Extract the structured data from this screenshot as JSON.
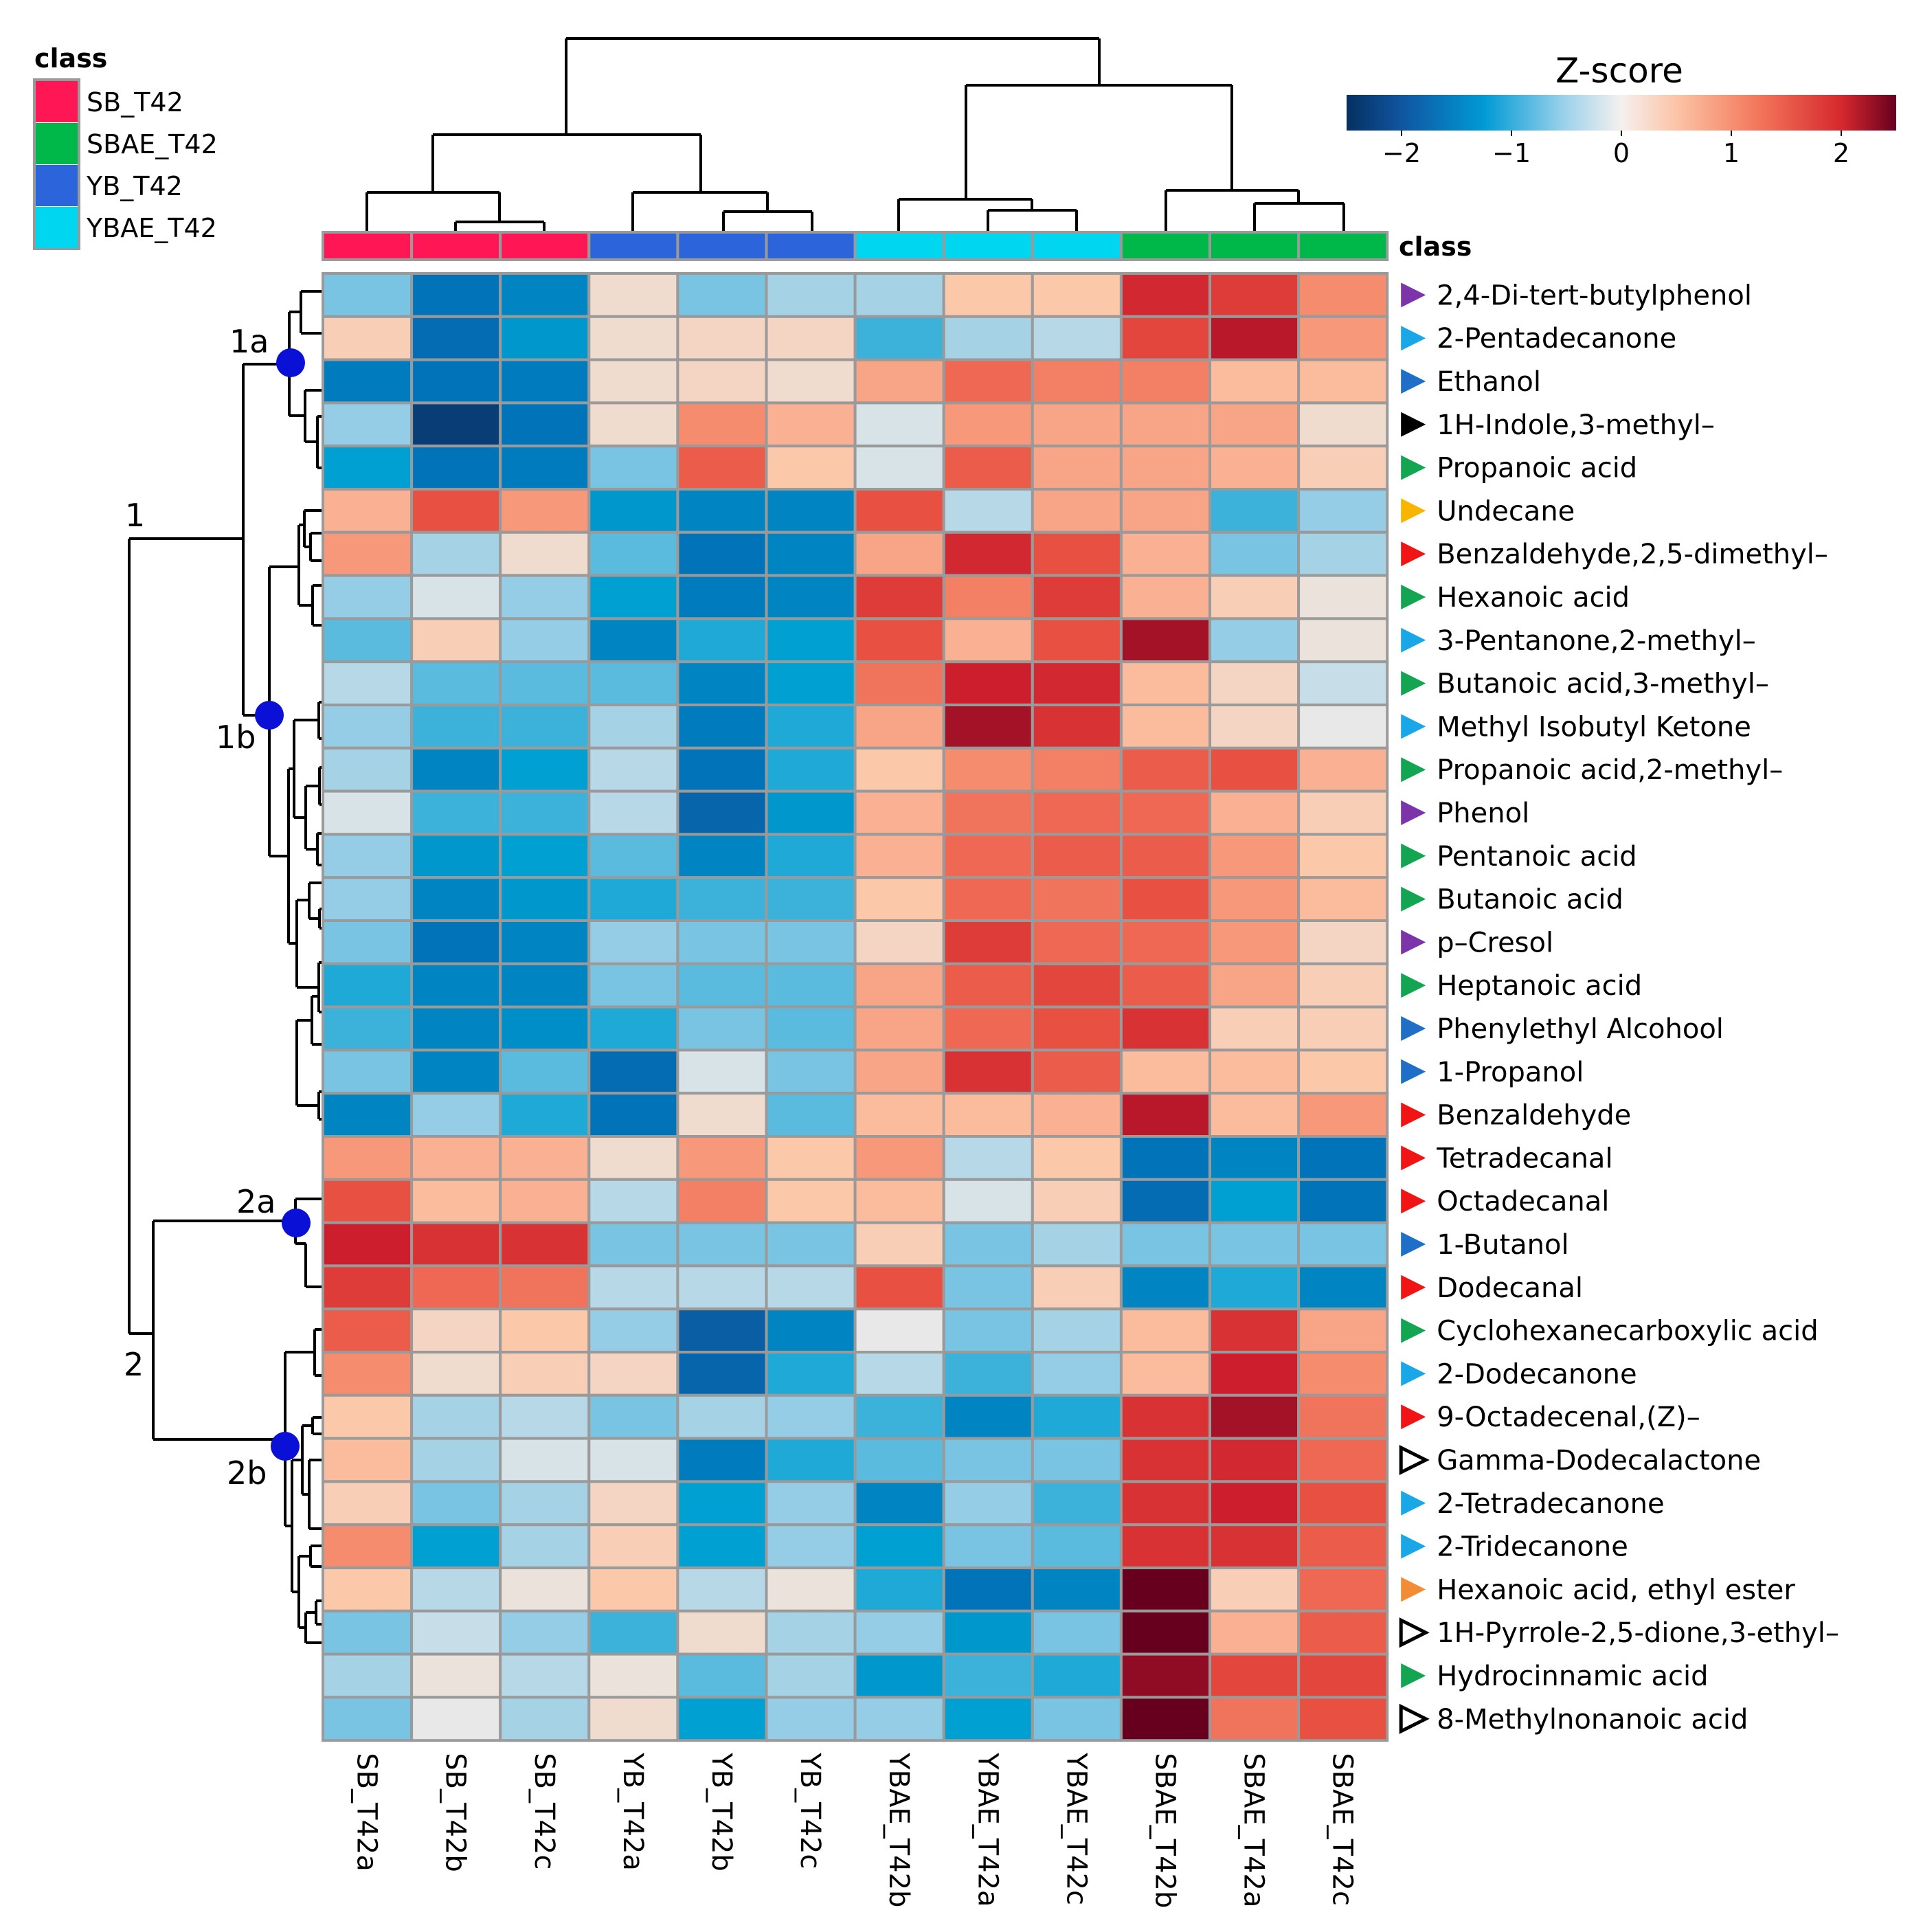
{
  "legend": {
    "title": "class",
    "items": [
      {
        "label": "SB_T42",
        "color": "#ff1654"
      },
      {
        "label": "SBAE_T42",
        "color": "#00b84a"
      },
      {
        "label": "YB_T42",
        "color": "#2c64dc"
      },
      {
        "label": "YBAE_T42",
        "color": "#00d6f0"
      }
    ]
  },
  "colorbar": {
    "title": "Z-score",
    "ticks": [
      "−2",
      "−1",
      "0",
      "1",
      "2"
    ],
    "tick_values": [
      -2,
      -1,
      0,
      1,
      2
    ],
    "range": [
      -2.5,
      2.5
    ]
  },
  "class_bar_label": "class",
  "clusters": [
    {
      "id": "1",
      "label": "1"
    },
    {
      "id": "1a",
      "label": "1a"
    },
    {
      "id": "1b",
      "label": "1b"
    },
    {
      "id": "2",
      "label": "2"
    },
    {
      "id": "2a",
      "label": "2a"
    },
    {
      "id": "2b",
      "label": "2b"
    }
  ],
  "chart_data": {
    "type": "heatmap",
    "title": "Z-score",
    "columns": [
      "SB_T42a",
      "SB_T42b",
      "SB_T42c",
      "YB_T42a",
      "YB_T42b",
      "YB_T42c",
      "YBAE_T42b",
      "YBAE_T42a",
      "YBAE_T42c",
      "SBAE_T42b",
      "SBAE_T42a",
      "SBAE_T42c"
    ],
    "column_classes": [
      "SB_T42",
      "SB_T42",
      "SB_T42",
      "YB_T42",
      "YB_T42",
      "YB_T42",
      "YBAE_T42",
      "YBAE_T42",
      "YBAE_T42",
      "SBAE_T42",
      "SBAE_T42",
      "SBAE_T42"
    ],
    "rows": [
      {
        "name": "2,4-Di-tert-butylphenol",
        "marker": "#7b35a8",
        "values": [
          -0.6,
          -1.5,
          -1.3,
          0.2,
          -0.6,
          -0.4,
          -0.4,
          0.5,
          0.5,
          1.9,
          1.7,
          1.0
        ]
      },
      {
        "name": "2-Pentadecanone",
        "marker": "#1aa7e8",
        "values": [
          0.4,
          -1.6,
          -1.1,
          0.2,
          0.3,
          0.3,
          -0.8,
          -0.4,
          -0.3,
          1.6,
          2.1,
          0.9
        ]
      },
      {
        "name": "Ethanol",
        "marker": "#1f6fc8",
        "values": [
          -1.4,
          -1.5,
          -1.4,
          0.2,
          0.3,
          0.2,
          0.8,
          1.3,
          1.1,
          1.1,
          0.6,
          0.6
        ]
      },
      {
        "name": "1H-Indole,3-methyl–",
        "marker": "#000000",
        "values": [
          -0.5,
          -2.3,
          -1.5,
          0.2,
          1.0,
          0.7,
          -0.1,
          0.9,
          0.8,
          0.8,
          0.8,
          0.2
        ]
      },
      {
        "name": "Propanoic acid",
        "marker": "#13a552",
        "values": [
          -1.0,
          -1.5,
          -1.4,
          -0.6,
          1.4,
          0.5,
          -0.1,
          1.4,
          0.8,
          0.8,
          0.7,
          0.4
        ]
      },
      {
        "name": "Undecane",
        "marker": "#f7b500",
        "values": [
          0.7,
          1.5,
          0.9,
          -1.1,
          -1.3,
          -1.3,
          1.5,
          -0.3,
          0.8,
          0.8,
          -0.8,
          -0.5
        ]
      },
      {
        "name": "Benzaldehyde,2,5-dimethyl–",
        "marker": "#f01414",
        "values": [
          0.9,
          -0.4,
          0.2,
          -0.7,
          -1.5,
          -1.3,
          0.8,
          1.9,
          1.5,
          0.7,
          -0.6,
          -0.4
        ]
      },
      {
        "name": "Hexanoic acid",
        "marker": "#13a552",
        "values": [
          -0.5,
          -0.1,
          -0.5,
          -1.0,
          -1.4,
          -1.3,
          1.7,
          1.1,
          1.7,
          0.7,
          0.4,
          0.1
        ]
      },
      {
        "name": "3-Pentanone,2-methyl–",
        "marker": "#1aa7e8",
        "values": [
          -0.7,
          0.4,
          -0.5,
          -1.3,
          -0.9,
          -1.0,
          1.5,
          0.7,
          1.5,
          2.2,
          -0.5,
          0.1
        ]
      },
      {
        "name": "Butanoic acid,3-methyl–",
        "marker": "#13a552",
        "values": [
          -0.3,
          -0.7,
          -0.7,
          -0.7,
          -1.3,
          -1.0,
          1.2,
          2.0,
          1.9,
          0.6,
          0.3,
          -0.2
        ]
      },
      {
        "name": "Methyl Isobutyl Ketone",
        "marker": "#1aa7e8",
        "values": [
          -0.5,
          -0.8,
          -0.8,
          -0.4,
          -1.4,
          -0.9,
          0.8,
          2.2,
          1.8,
          0.6,
          0.3,
          0.0
        ]
      },
      {
        "name": "Propanoic acid,2-methyl–",
        "marker": "#13a552",
        "values": [
          -0.4,
          -1.3,
          -1.0,
          -0.3,
          -1.5,
          -0.9,
          0.5,
          1.0,
          1.1,
          1.4,
          1.5,
          0.7
        ]
      },
      {
        "name": "Phenol",
        "marker": "#7b35a8",
        "values": [
          -0.1,
          -0.8,
          -0.8,
          -0.3,
          -1.7,
          -1.1,
          0.7,
          1.2,
          1.3,
          1.3,
          0.7,
          0.4
        ]
      },
      {
        "name": "Pentanoic acid",
        "marker": "#13a552",
        "values": [
          -0.5,
          -1.1,
          -1.0,
          -0.7,
          -1.3,
          -0.9,
          0.7,
          1.3,
          1.4,
          1.4,
          0.9,
          0.5
        ]
      },
      {
        "name": "Butanoic acid",
        "marker": "#13a552",
        "values": [
          -0.5,
          -1.3,
          -1.1,
          -0.9,
          -0.8,
          -0.8,
          0.5,
          1.3,
          1.2,
          1.5,
          0.9,
          0.6
        ]
      },
      {
        "name": "p–Cresol",
        "marker": "#7b35a8",
        "values": [
          -0.6,
          -1.5,
          -1.3,
          -0.5,
          -0.6,
          -0.6,
          0.3,
          1.7,
          1.3,
          1.3,
          0.9,
          0.3
        ]
      },
      {
        "name": "Heptanoic acid",
        "marker": "#13a552",
        "values": [
          -0.9,
          -1.3,
          -1.3,
          -0.6,
          -0.7,
          -0.7,
          0.8,
          1.4,
          1.6,
          1.4,
          0.8,
          0.4
        ]
      },
      {
        "name": "Phenylethyl Alcohool",
        "marker": "#1f6fc8",
        "values": [
          -0.8,
          -1.3,
          -1.2,
          -0.9,
          -0.6,
          -0.7,
          0.8,
          1.3,
          1.5,
          1.8,
          0.4,
          0.4
        ]
      },
      {
        "name": "1-Propanol",
        "marker": "#1f6fc8",
        "values": [
          -0.6,
          -1.3,
          -0.7,
          -1.6,
          -0.1,
          -0.6,
          0.8,
          1.8,
          1.4,
          0.6,
          0.6,
          0.5
        ]
      },
      {
        "name": "Benzaldehyde",
        "marker": "#f01414",
        "values": [
          -1.3,
          -0.5,
          -0.9,
          -1.5,
          0.2,
          -0.7,
          0.6,
          0.6,
          0.7,
          2.1,
          0.6,
          0.9
        ]
      },
      {
        "name": "Tetradecanal",
        "marker": "#f01414",
        "values": [
          0.9,
          0.7,
          0.7,
          0.2,
          0.9,
          0.5,
          0.9,
          -0.3,
          0.5,
          -1.5,
          -1.3,
          -1.5
        ]
      },
      {
        "name": "Octadecanal",
        "marker": "#f01414",
        "values": [
          1.5,
          0.6,
          0.7,
          -0.3,
          1.1,
          0.5,
          0.6,
          -0.1,
          0.4,
          -1.6,
          -1.0,
          -1.5
        ]
      },
      {
        "name": "1-Butanol",
        "marker": "#1f6fc8",
        "values": [
          2.0,
          1.8,
          1.8,
          -0.6,
          -0.6,
          -0.6,
          0.4,
          -0.6,
          -0.4,
          -0.6,
          -0.6,
          -0.6
        ]
      },
      {
        "name": "Dodecanal",
        "marker": "#f01414",
        "values": [
          1.7,
          1.3,
          1.2,
          -0.3,
          -0.3,
          -0.3,
          1.5,
          -0.6,
          0.4,
          -1.3,
          -0.9,
          -1.3
        ]
      },
      {
        "name": "Cyclohexanecarboxylic acid",
        "marker": "#13a552",
        "values": [
          1.4,
          0.3,
          0.5,
          -0.5,
          -1.8,
          -1.3,
          0.0,
          -0.6,
          -0.4,
          0.6,
          1.8,
          0.8
        ]
      },
      {
        "name": "2-Dodecanone",
        "marker": "#1aa7e8",
        "values": [
          1.0,
          0.2,
          0.4,
          0.3,
          -1.7,
          -0.9,
          -0.3,
          -0.8,
          -0.5,
          0.6,
          2.0,
          1.0
        ]
      },
      {
        "name": "9-Octadecenal,(Z)–",
        "marker": "#f01414",
        "values": [
          0.5,
          -0.4,
          -0.3,
          -0.6,
          -0.4,
          -0.5,
          -0.8,
          -1.3,
          -0.9,
          1.8,
          2.2,
          1.2
        ]
      },
      {
        "name": "Gamma-Dodecalactone",
        "marker": "outline",
        "values": [
          0.6,
          -0.4,
          -0.1,
          -0.1,
          -1.4,
          -0.9,
          -0.7,
          -0.6,
          -0.6,
          1.8,
          1.9,
          1.3
        ]
      },
      {
        "name": "2-Tetradecanone",
        "marker": "#1aa7e8",
        "values": [
          0.4,
          -0.6,
          -0.4,
          0.3,
          -1.0,
          -0.5,
          -1.3,
          -0.5,
          -0.8,
          1.8,
          2.0,
          1.5
        ]
      },
      {
        "name": "2-Tridecanone",
        "marker": "#1aa7e8",
        "values": [
          1.0,
          -1.0,
          -0.4,
          0.4,
          -1.0,
          -0.5,
          -1.0,
          -0.6,
          -0.7,
          1.8,
          1.8,
          1.4
        ]
      },
      {
        "name": "Hexanoic acid, ethyl ester",
        "marker": "#f28d35",
        "values": [
          0.5,
          -0.3,
          0.1,
          0.5,
          -0.3,
          0.1,
          -0.9,
          -1.5,
          -1.3,
          2.6,
          0.4,
          1.3
        ]
      },
      {
        "name": "1H-Pyrrole-2,5-dione,3-ethyl–",
        "marker": "outline",
        "values": [
          -0.6,
          -0.2,
          -0.5,
          -0.8,
          0.2,
          -0.4,
          -0.5,
          -1.1,
          -0.6,
          2.9,
          0.7,
          1.4
        ]
      },
      {
        "name": "Hydrocinnamic acid",
        "marker": "#13a552",
        "values": [
          -0.4,
          0.1,
          -0.3,
          0.1,
          -0.7,
          -0.4,
          -1.1,
          -0.8,
          -0.9,
          2.3,
          1.6,
          1.6
        ]
      },
      {
        "name": "8-Methylnonanoic acid",
        "marker": "outline",
        "values": [
          -0.6,
          0.0,
          -0.4,
          0.2,
          -1.0,
          -0.5,
          -0.5,
          -1.0,
          -0.6,
          2.6,
          1.2,
          1.5
        ]
      }
    ]
  }
}
